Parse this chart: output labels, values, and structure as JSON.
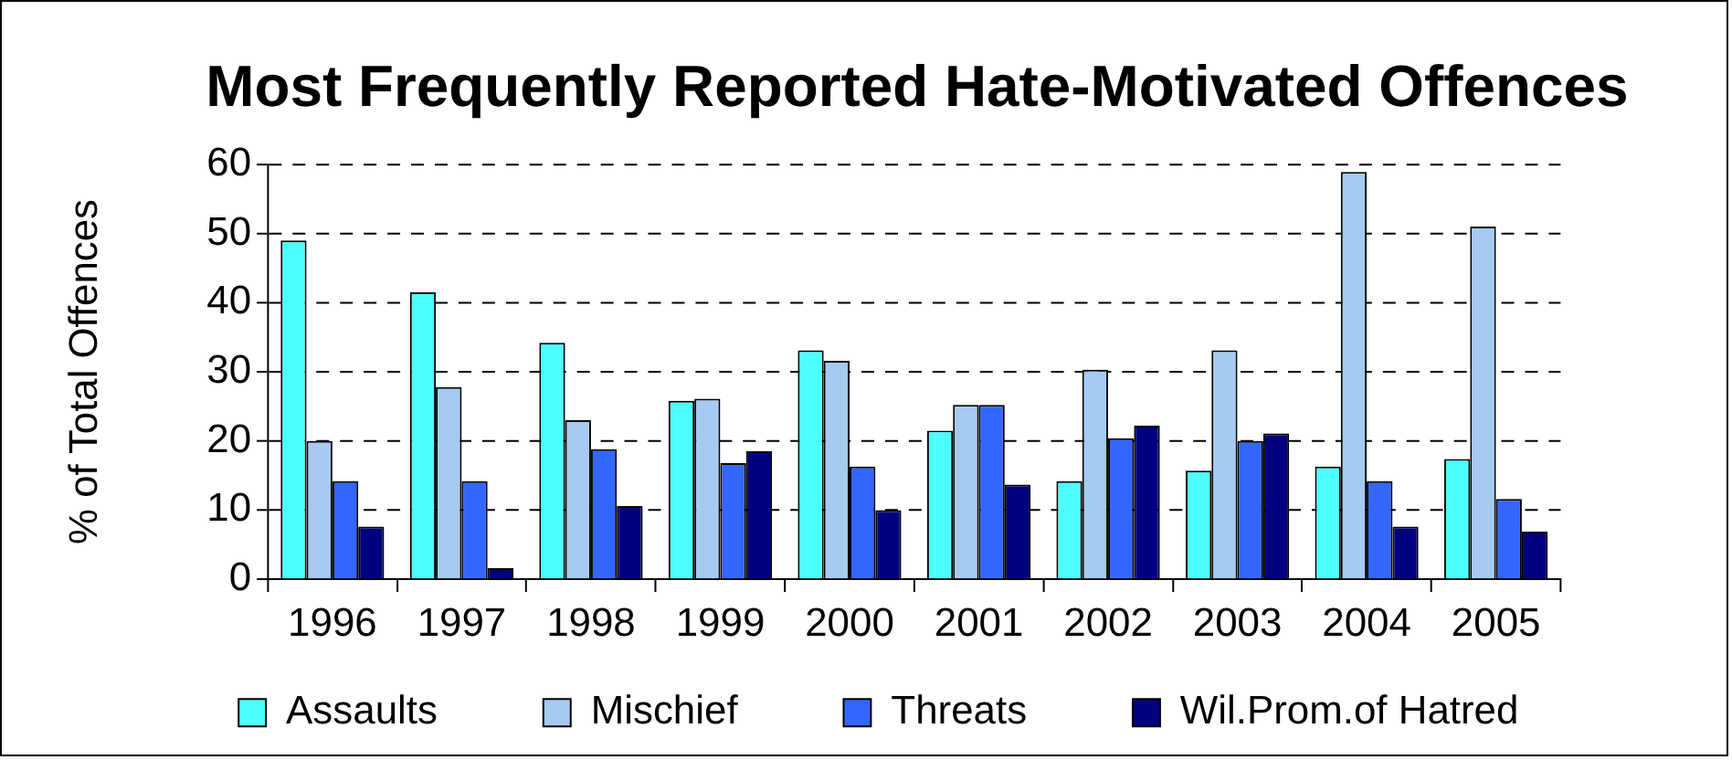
{
  "chart_data": {
    "type": "bar",
    "title": "Most Frequently Reported Hate-Motivated Offences",
    "ylabel": "% of Total Offences",
    "categories": [
      "1996",
      "1997",
      "1998",
      "1999",
      "2000",
      "2001",
      "2002",
      "2003",
      "2004",
      "2005"
    ],
    "series": [
      {
        "name": "Assaults",
        "color": "#4dffff",
        "values": [
          49.0,
          41.5,
          34.2,
          25.8,
          33.1,
          21.5,
          14.2,
          15.7,
          16.3,
          17.4
        ]
      },
      {
        "name": "Mischief",
        "color": "#a6caf0",
        "values": [
          20.0,
          27.8,
          23.0,
          26.1,
          31.6,
          25.2,
          30.3,
          33.1,
          58.9,
          51.0
        ]
      },
      {
        "name": "Threats",
        "color": "#3366ff",
        "values": [
          14.2,
          14.2,
          18.8,
          16.8,
          16.3,
          25.2,
          20.4,
          20.0,
          14.2,
          11.6
        ]
      },
      {
        "name": "Wil.Prom.of Hatred",
        "color": "#000080",
        "values": [
          7.6,
          1.6,
          10.6,
          18.5,
          10.0,
          13.7,
          22.2,
          21.1,
          7.6,
          6.9
        ]
      }
    ],
    "ylim": [
      0,
      60
    ],
    "yticks": [
      0,
      10,
      20,
      30,
      40,
      50,
      60
    ],
    "grid": "y",
    "legend": "bottom"
  }
}
